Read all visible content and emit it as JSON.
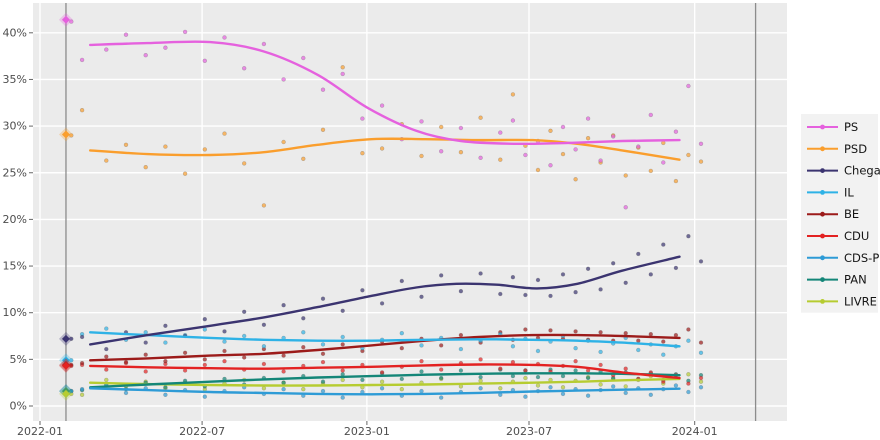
{
  "chart_data": {
    "type": "line",
    "title": "",
    "description_visible": "Polling trend lines with poll scatter dots for Portuguese parties, plus election-result diamond markers on a vertical election line",
    "xlabel": "",
    "ylabel": "",
    "x_axis": {
      "tick_labels": [
        "2022-01",
        "2022-07",
        "2023-01",
        "2023-07",
        "2024-01"
      ],
      "tick_days": [
        0,
        181,
        365,
        546,
        731
      ],
      "range_days": [
        -8,
        835
      ]
    },
    "y_axis": {
      "tick_labels": [
        "0%",
        "5%",
        "10%",
        "15%",
        "20%",
        "25%",
        "30%",
        "35%",
        "40%"
      ],
      "tick_values": [
        0,
        5,
        10,
        15,
        20,
        25,
        30,
        35,
        40
      ],
      "range": [
        -1.6,
        43.2
      ],
      "grid": "on"
    },
    "event_vlines_days": [
      29,
      799
    ],
    "election_marker_day": 29,
    "legend_position": "right",
    "poll_days": [
      35,
      47,
      74,
      96,
      118,
      140,
      162,
      184,
      206,
      228,
      250,
      272,
      294,
      316,
      338,
      360,
      382,
      404,
      426,
      448,
      470,
      492,
      514,
      528,
      542,
      556,
      570,
      584,
      598,
      612,
      626,
      640,
      654,
      668,
      682,
      696,
      710,
      724,
      738
    ],
    "series": [
      {
        "name": "PS",
        "color": "#e561de",
        "election_result": 41.4,
        "trend": [
          [
            56,
            38.7
          ],
          [
            120,
            38.9
          ],
          [
            190,
            39.0
          ],
          [
            250,
            38.0
          ],
          [
            310,
            35.5
          ],
          [
            365,
            32.0
          ],
          [
            420,
            29.5
          ],
          [
            470,
            28.4
          ],
          [
            530,
            28.1
          ],
          [
            590,
            28.2
          ],
          [
            650,
            28.4
          ],
          [
            714,
            28.5
          ]
        ],
        "polls": [
          41.2,
          37.1,
          38.2,
          39.8,
          37.6,
          38.4,
          40.1,
          37.0,
          39.5,
          36.2,
          38.8,
          35.0,
          37.3,
          33.9,
          35.6,
          30.8,
          32.2,
          28.6,
          30.5,
          27.3,
          29.8,
          26.6,
          29.3,
          30.6,
          26.9,
          28.4,
          25.8,
          29.9,
          27.5,
          30.8,
          26.3,
          28.9,
          21.3,
          27.8,
          31.2,
          26.1,
          29.4,
          34.3,
          28.1
        ]
      },
      {
        "name": "PSD",
        "color": "#fa9e2d",
        "election_result": 29.1,
        "trend": [
          [
            56,
            27.4
          ],
          [
            120,
            27.0
          ],
          [
            190,
            26.9
          ],
          [
            250,
            27.2
          ],
          [
            310,
            28.0
          ],
          [
            370,
            28.6
          ],
          [
            430,
            28.6
          ],
          [
            490,
            28.5
          ],
          [
            550,
            28.5
          ],
          [
            600,
            28.1
          ],
          [
            650,
            27.4
          ],
          [
            714,
            26.4
          ]
        ],
        "polls": [
          29.0,
          31.7,
          26.3,
          28.0,
          25.6,
          27.8,
          24.9,
          27.5,
          29.2,
          26.0,
          21.5,
          28.3,
          26.5,
          29.6,
          36.3,
          27.1,
          27.6,
          30.2,
          26.8,
          29.9,
          27.2,
          30.9,
          26.4,
          33.4,
          27.9,
          25.3,
          29.5,
          27.0,
          24.3,
          28.7,
          26.1,
          29.0,
          24.7,
          27.7,
          25.2,
          28.2,
          24.1,
          26.9,
          26.2
        ]
      },
      {
        "name": "Chega",
        "color": "#3b3470",
        "election_result": 7.2,
        "trend": [
          [
            56,
            6.6
          ],
          [
            120,
            7.6
          ],
          [
            190,
            8.6
          ],
          [
            250,
            9.5
          ],
          [
            310,
            10.6
          ],
          [
            365,
            11.7
          ],
          [
            420,
            12.7
          ],
          [
            465,
            13.1
          ],
          [
            510,
            13.0
          ],
          [
            555,
            12.6
          ],
          [
            600,
            13.1
          ],
          [
            650,
            14.5
          ],
          [
            714,
            16.0
          ]
        ],
        "polls": [
          7.2,
          7.4,
          6.1,
          7.9,
          6.8,
          8.6,
          7.5,
          9.3,
          8.0,
          10.1,
          8.7,
          10.8,
          9.4,
          11.5,
          10.2,
          12.4,
          11.0,
          13.4,
          11.7,
          14.0,
          12.3,
          14.2,
          12.0,
          13.8,
          11.9,
          13.5,
          11.8,
          14.1,
          12.2,
          14.7,
          12.5,
          15.3,
          13.2,
          16.3,
          14.1,
          17.3,
          14.8,
          18.2,
          15.5
        ]
      },
      {
        "name": "IL",
        "color": "#2eb2e6",
        "election_result": 4.9,
        "trend": [
          [
            56,
            7.9
          ],
          [
            120,
            7.6
          ],
          [
            190,
            7.3
          ],
          [
            250,
            7.1
          ],
          [
            310,
            7.0
          ],
          [
            370,
            7.0
          ],
          [
            430,
            7.1
          ],
          [
            490,
            7.15
          ],
          [
            550,
            7.1
          ],
          [
            600,
            7.0
          ],
          [
            650,
            6.8
          ],
          [
            714,
            6.4
          ]
        ],
        "polls": [
          4.9,
          7.7,
          8.3,
          7.1,
          7.9,
          6.8,
          7.6,
          8.2,
          6.9,
          7.5,
          6.4,
          7.3,
          7.9,
          6.6,
          7.4,
          6.2,
          7.1,
          7.8,
          6.5,
          7.3,
          6.1,
          7.0,
          7.7,
          6.4,
          7.2,
          5.9,
          6.9,
          7.5,
          6.2,
          7.0,
          5.8,
          6.7,
          7.3,
          6.0,
          6.6,
          5.5,
          6.4,
          7.0,
          5.7
        ]
      },
      {
        "name": "BE",
        "color": "#9c1b1a",
        "election_result": 4.4,
        "trend": [
          [
            56,
            4.9
          ],
          [
            120,
            5.1
          ],
          [
            190,
            5.4
          ],
          [
            250,
            5.6
          ],
          [
            310,
            6.0
          ],
          [
            370,
            6.5
          ],
          [
            430,
            7.0
          ],
          [
            490,
            7.4
          ],
          [
            550,
            7.6
          ],
          [
            600,
            7.6
          ],
          [
            650,
            7.5
          ],
          [
            714,
            7.3
          ]
        ],
        "polls": [
          4.4,
          4.6,
          5.3,
          4.7,
          5.5,
          4.8,
          5.7,
          5.0,
          5.9,
          5.2,
          6.1,
          5.4,
          6.3,
          5.6,
          6.6,
          5.9,
          6.9,
          6.2,
          7.2,
          6.5,
          7.6,
          6.8,
          7.9,
          7.1,
          8.2,
          7.3,
          8.1,
          7.2,
          8.0,
          7.1,
          7.9,
          7.0,
          7.8,
          7.0,
          7.7,
          6.9,
          7.6,
          8.2,
          6.8
        ]
      },
      {
        "name": "CDU",
        "color": "#e32222",
        "election_result": 4.3,
        "trend": [
          [
            56,
            4.3
          ],
          [
            120,
            4.15
          ],
          [
            190,
            4.05
          ],
          [
            250,
            4.0
          ],
          [
            310,
            4.1
          ],
          [
            370,
            4.2
          ],
          [
            430,
            4.35
          ],
          [
            490,
            4.45
          ],
          [
            550,
            4.4
          ],
          [
            600,
            4.2
          ],
          [
            650,
            3.6
          ],
          [
            714,
            3.0
          ]
        ],
        "polls": [
          4.3,
          4.4,
          3.9,
          4.6,
          3.7,
          4.5,
          3.8,
          4.4,
          4.8,
          3.9,
          4.5,
          3.7,
          4.3,
          4.7,
          3.8,
          4.4,
          3.6,
          4.2,
          4.8,
          3.9,
          4.6,
          5.0,
          4.0,
          4.7,
          3.8,
          4.5,
          3.7,
          4.3,
          4.8,
          3.8,
          4.4,
          3.3,
          4.0,
          2.9,
          3.6,
          2.6,
          3.3,
          2.4,
          3.0
        ]
      },
      {
        "name": "CDS-PP",
        "color": "#2e9bd6",
        "election_result": 1.6,
        "trend": [
          [
            56,
            1.9
          ],
          [
            120,
            1.7
          ],
          [
            190,
            1.5
          ],
          [
            250,
            1.4
          ],
          [
            310,
            1.3
          ],
          [
            370,
            1.25
          ],
          [
            430,
            1.3
          ],
          [
            490,
            1.4
          ],
          [
            550,
            1.55
          ],
          [
            600,
            1.65
          ],
          [
            650,
            1.75
          ],
          [
            714,
            1.85
          ]
        ],
        "polls": [
          1.6,
          1.8,
          2.2,
          1.4,
          1.9,
          1.2,
          1.7,
          1.0,
          1.6,
          2.0,
          1.3,
          1.8,
          1.1,
          1.6,
          0.9,
          1.5,
          1.9,
          1.1,
          1.6,
          0.9,
          1.5,
          1.9,
          1.2,
          1.7,
          1.0,
          1.6,
          2.0,
          1.3,
          1.8,
          1.1,
          1.7,
          2.1,
          1.4,
          1.9,
          1.2,
          1.8,
          2.2,
          1.5,
          2.0
        ]
      },
      {
        "name": "PAN",
        "color": "#148678",
        "election_result": 1.6,
        "trend": [
          [
            56,
            2.0
          ],
          [
            120,
            2.3
          ],
          [
            190,
            2.6
          ],
          [
            250,
            2.85
          ],
          [
            310,
            3.05
          ],
          [
            370,
            3.2
          ],
          [
            430,
            3.35
          ],
          [
            490,
            3.45
          ],
          [
            550,
            3.5
          ],
          [
            600,
            3.5
          ],
          [
            650,
            3.45
          ],
          [
            714,
            3.3
          ]
        ],
        "polls": [
          1.6,
          1.7,
          2.3,
          1.8,
          2.5,
          2.0,
          2.7,
          2.1,
          2.9,
          2.3,
          3.0,
          2.5,
          3.2,
          2.6,
          3.4,
          2.8,
          3.5,
          2.9,
          3.7,
          3.0,
          3.8,
          3.1,
          3.9,
          3.2,
          3.8,
          3.1,
          3.9,
          3.2,
          3.8,
          3.0,
          3.7,
          3.0,
          3.6,
          2.9,
          3.5,
          2.8,
          3.4,
          2.7,
          3.3
        ]
      },
      {
        "name": "LIVRE",
        "color": "#b6cc31",
        "election_result": 1.3,
        "trend": [
          [
            56,
            2.5
          ],
          [
            120,
            2.35
          ],
          [
            190,
            2.25
          ],
          [
            250,
            2.2
          ],
          [
            310,
            2.2
          ],
          [
            370,
            2.25
          ],
          [
            430,
            2.3
          ],
          [
            490,
            2.4
          ],
          [
            550,
            2.5
          ],
          [
            600,
            2.6
          ],
          [
            650,
            2.75
          ],
          [
            714,
            2.9
          ]
        ],
        "polls": [
          1.3,
          1.2,
          2.8,
          2.1,
          2.6,
          1.9,
          2.5,
          1.8,
          2.4,
          2.8,
          1.9,
          2.5,
          1.8,
          2.4,
          2.8,
          2.0,
          2.6,
          1.8,
          2.5,
          2.9,
          2.1,
          2.7,
          1.9,
          2.6,
          3.0,
          2.2,
          2.8,
          2.0,
          2.7,
          3.1,
          2.3,
          2.9,
          2.1,
          2.8,
          3.2,
          2.4,
          3.0,
          3.4,
          2.6
        ]
      }
    ],
    "colors": {
      "plot_bg": "#ebebeb",
      "grid": "#ffffff",
      "event_line": "#8c8c8c",
      "tick_text": "#4d4d4d",
      "legend_bg": "#f2f2f2",
      "legend_text": "#151515",
      "page_bg": "#ffffff"
    }
  }
}
